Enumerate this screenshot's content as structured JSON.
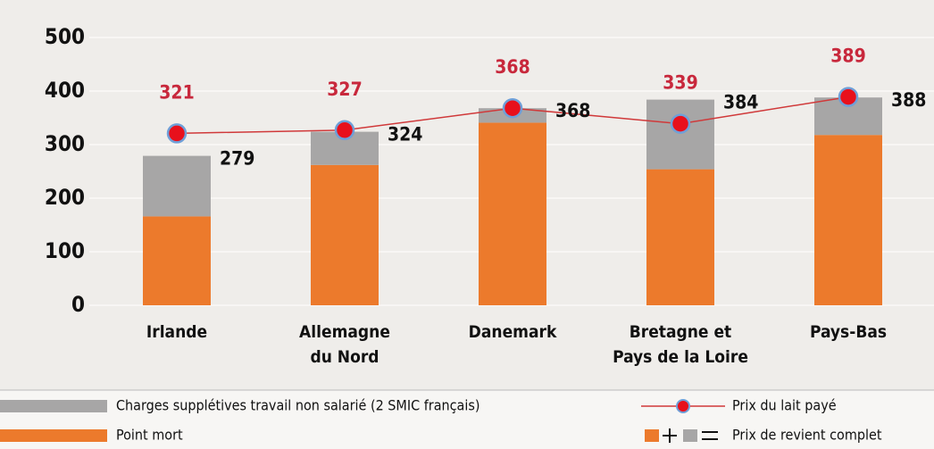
{
  "chart_data": {
    "type": "bar",
    "stacked": true,
    "categories": [
      [
        "Irlande"
      ],
      [
        "Allemagne",
        "du Nord"
      ],
      [
        "Danemark"
      ],
      [
        "Bretagne et",
        "Pays de la Loire"
      ],
      [
        "Pays-Bas"
      ]
    ],
    "series": [
      {
        "name": "Point mort",
        "color": "#ec7a2c",
        "values": [
          166,
          262,
          341,
          254,
          318
        ]
      },
      {
        "name": "Charges supplétives travail non salarié (2 SMIC français)",
        "color": "#a7a6a6",
        "values": [
          113,
          62,
          27,
          130,
          70
        ]
      },
      {
        "name": "Prix du lait payé",
        "type": "line",
        "color": "#d0393a",
        "marker_color": "#e8101c",
        "marker_edge": "#6f9fd8",
        "values": [
          321,
          327,
          368,
          339,
          389
        ]
      }
    ],
    "totals": {
      "name": "Prix de revient complet",
      "values": [
        279,
        324,
        368,
        384,
        388
      ]
    },
    "ylim": [
      0,
      500
    ],
    "yticks": [
      0,
      100,
      200,
      300,
      400,
      500
    ],
    "grid": true
  }
}
